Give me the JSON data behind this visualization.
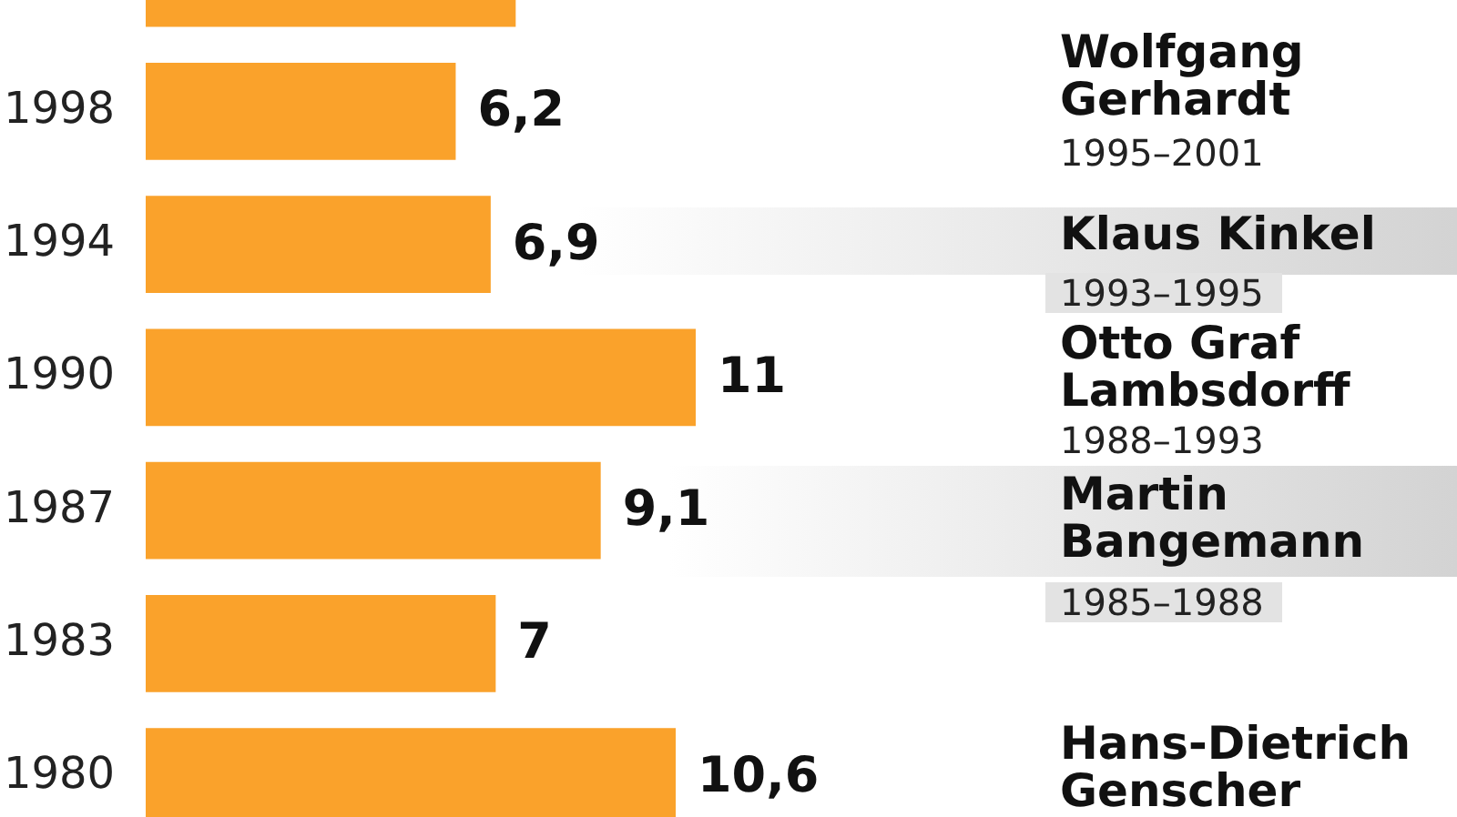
{
  "chart_data": {
    "type": "bar",
    "orientation": "horizontal",
    "categories": [
      null,
      "1998",
      "1994",
      "1990",
      "1987",
      "1983",
      "1980"
    ],
    "values": [
      7.4,
      6.2,
      6.9,
      11,
      9.1,
      7,
      10.6
    ],
    "value_labels": [
      null,
      "6,2",
      "6,9",
      "11",
      "9,1",
      "7",
      "10,6"
    ],
    "color": "#faa22b",
    "tick_labels": "y",
    "annotations": [
      "Wolfgang Gerhardt",
      "1995–2001",
      "Klaus Kinkel",
      "1993–1995",
      "Otto Graf Lambsdorff",
      "1988–1993",
      "Martin Bangemann",
      "1985–1988",
      "Hans-Dietrich Genscher"
    ]
  }
}
